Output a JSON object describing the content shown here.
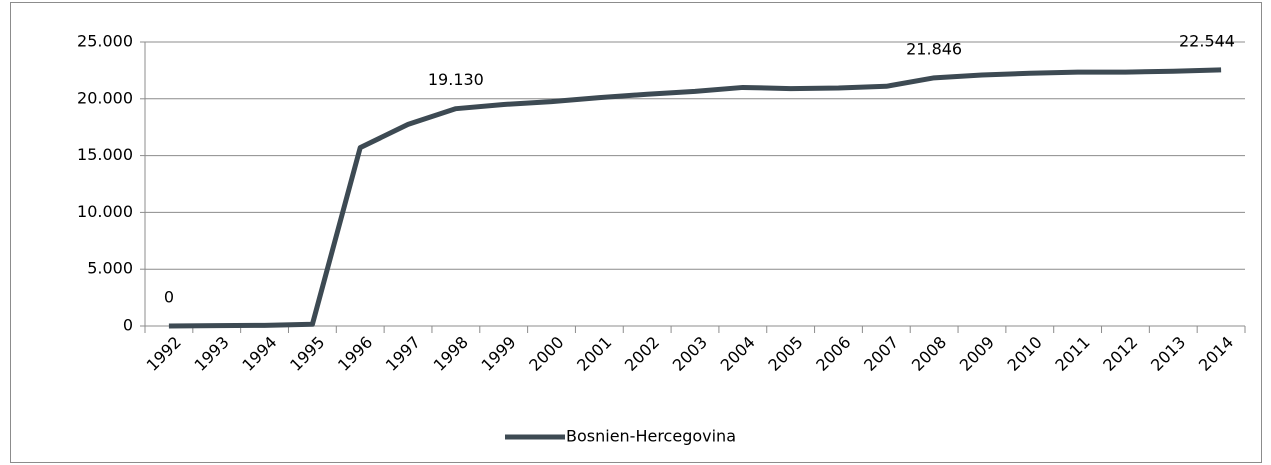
{
  "chart_data": {
    "type": "line",
    "categories": [
      "1992",
      "1993",
      "1994",
      "1995",
      "1996",
      "1997",
      "1998",
      "1999",
      "2000",
      "2001",
      "2002",
      "2003",
      "2004",
      "2005",
      "2006",
      "2007",
      "2008",
      "2009",
      "2010",
      "2011",
      "2012",
      "2013",
      "2014"
    ],
    "series": [
      {
        "name": "Bosnien-Hercegovina",
        "color": "#3d4a53",
        "values": [
          0,
          30,
          60,
          150,
          15700,
          17750,
          19130,
          19500,
          19750,
          20100,
          20400,
          20650,
          21000,
          20900,
          20950,
          21100,
          21846,
          22100,
          22250,
          22350,
          22350,
          22420,
          22544
        ],
        "value_labels": [
          "0",
          null,
          null,
          null,
          null,
          null,
          "19.130",
          null,
          null,
          null,
          null,
          null,
          null,
          null,
          null,
          null,
          "21.846",
          null,
          null,
          null,
          null,
          null,
          "22.544"
        ]
      }
    ],
    "ylim": [
      0,
      25000
    ],
    "yticks": [
      0,
      {
        "value": 5000,
        "label": "5.000"
      },
      {
        "value": 10000,
        "label": "10.000"
      },
      {
        "value": 15000,
        "label": "15.000"
      },
      {
        "value": 20000,
        "label": "20.000"
      },
      {
        "value": 25000,
        "label": "25.000"
      }
    ],
    "grid": true,
    "legend": "bottom"
  }
}
